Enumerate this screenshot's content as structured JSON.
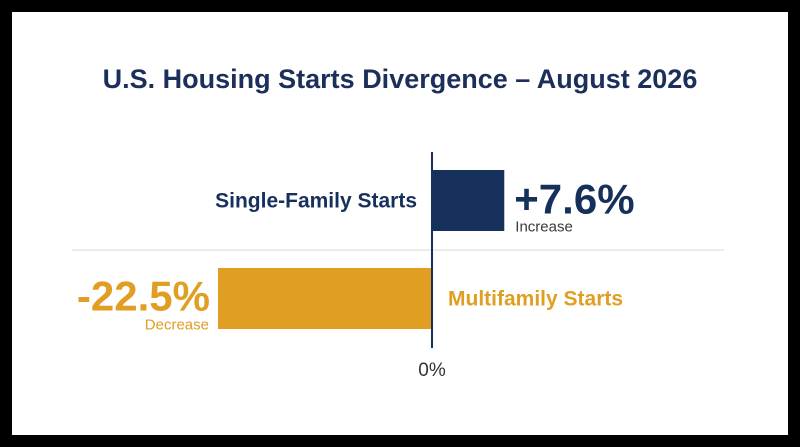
{
  "colors": {
    "single_family": "#16305c",
    "multifamily": "#e09e22",
    "divider": "#d9d9d9",
    "sublabel": "#3a3a3a",
    "axis_label": "#333333"
  },
  "chart_data": {
    "type": "bar",
    "orientation": "horizontal",
    "title": "U.S. Housing Starts Divergence – August 2026",
    "categories": [
      "Single-Family Starts",
      "Multifamily Starts"
    ],
    "values": [
      7.6,
      -22.5
    ],
    "value_labels": [
      "+7.6%",
      "-22.5%"
    ],
    "change_labels": [
      "Increase",
      "Decrease"
    ],
    "zero_label": "0%",
    "xlim": [
      -22.5,
      7.6
    ],
    "grid": false
  }
}
